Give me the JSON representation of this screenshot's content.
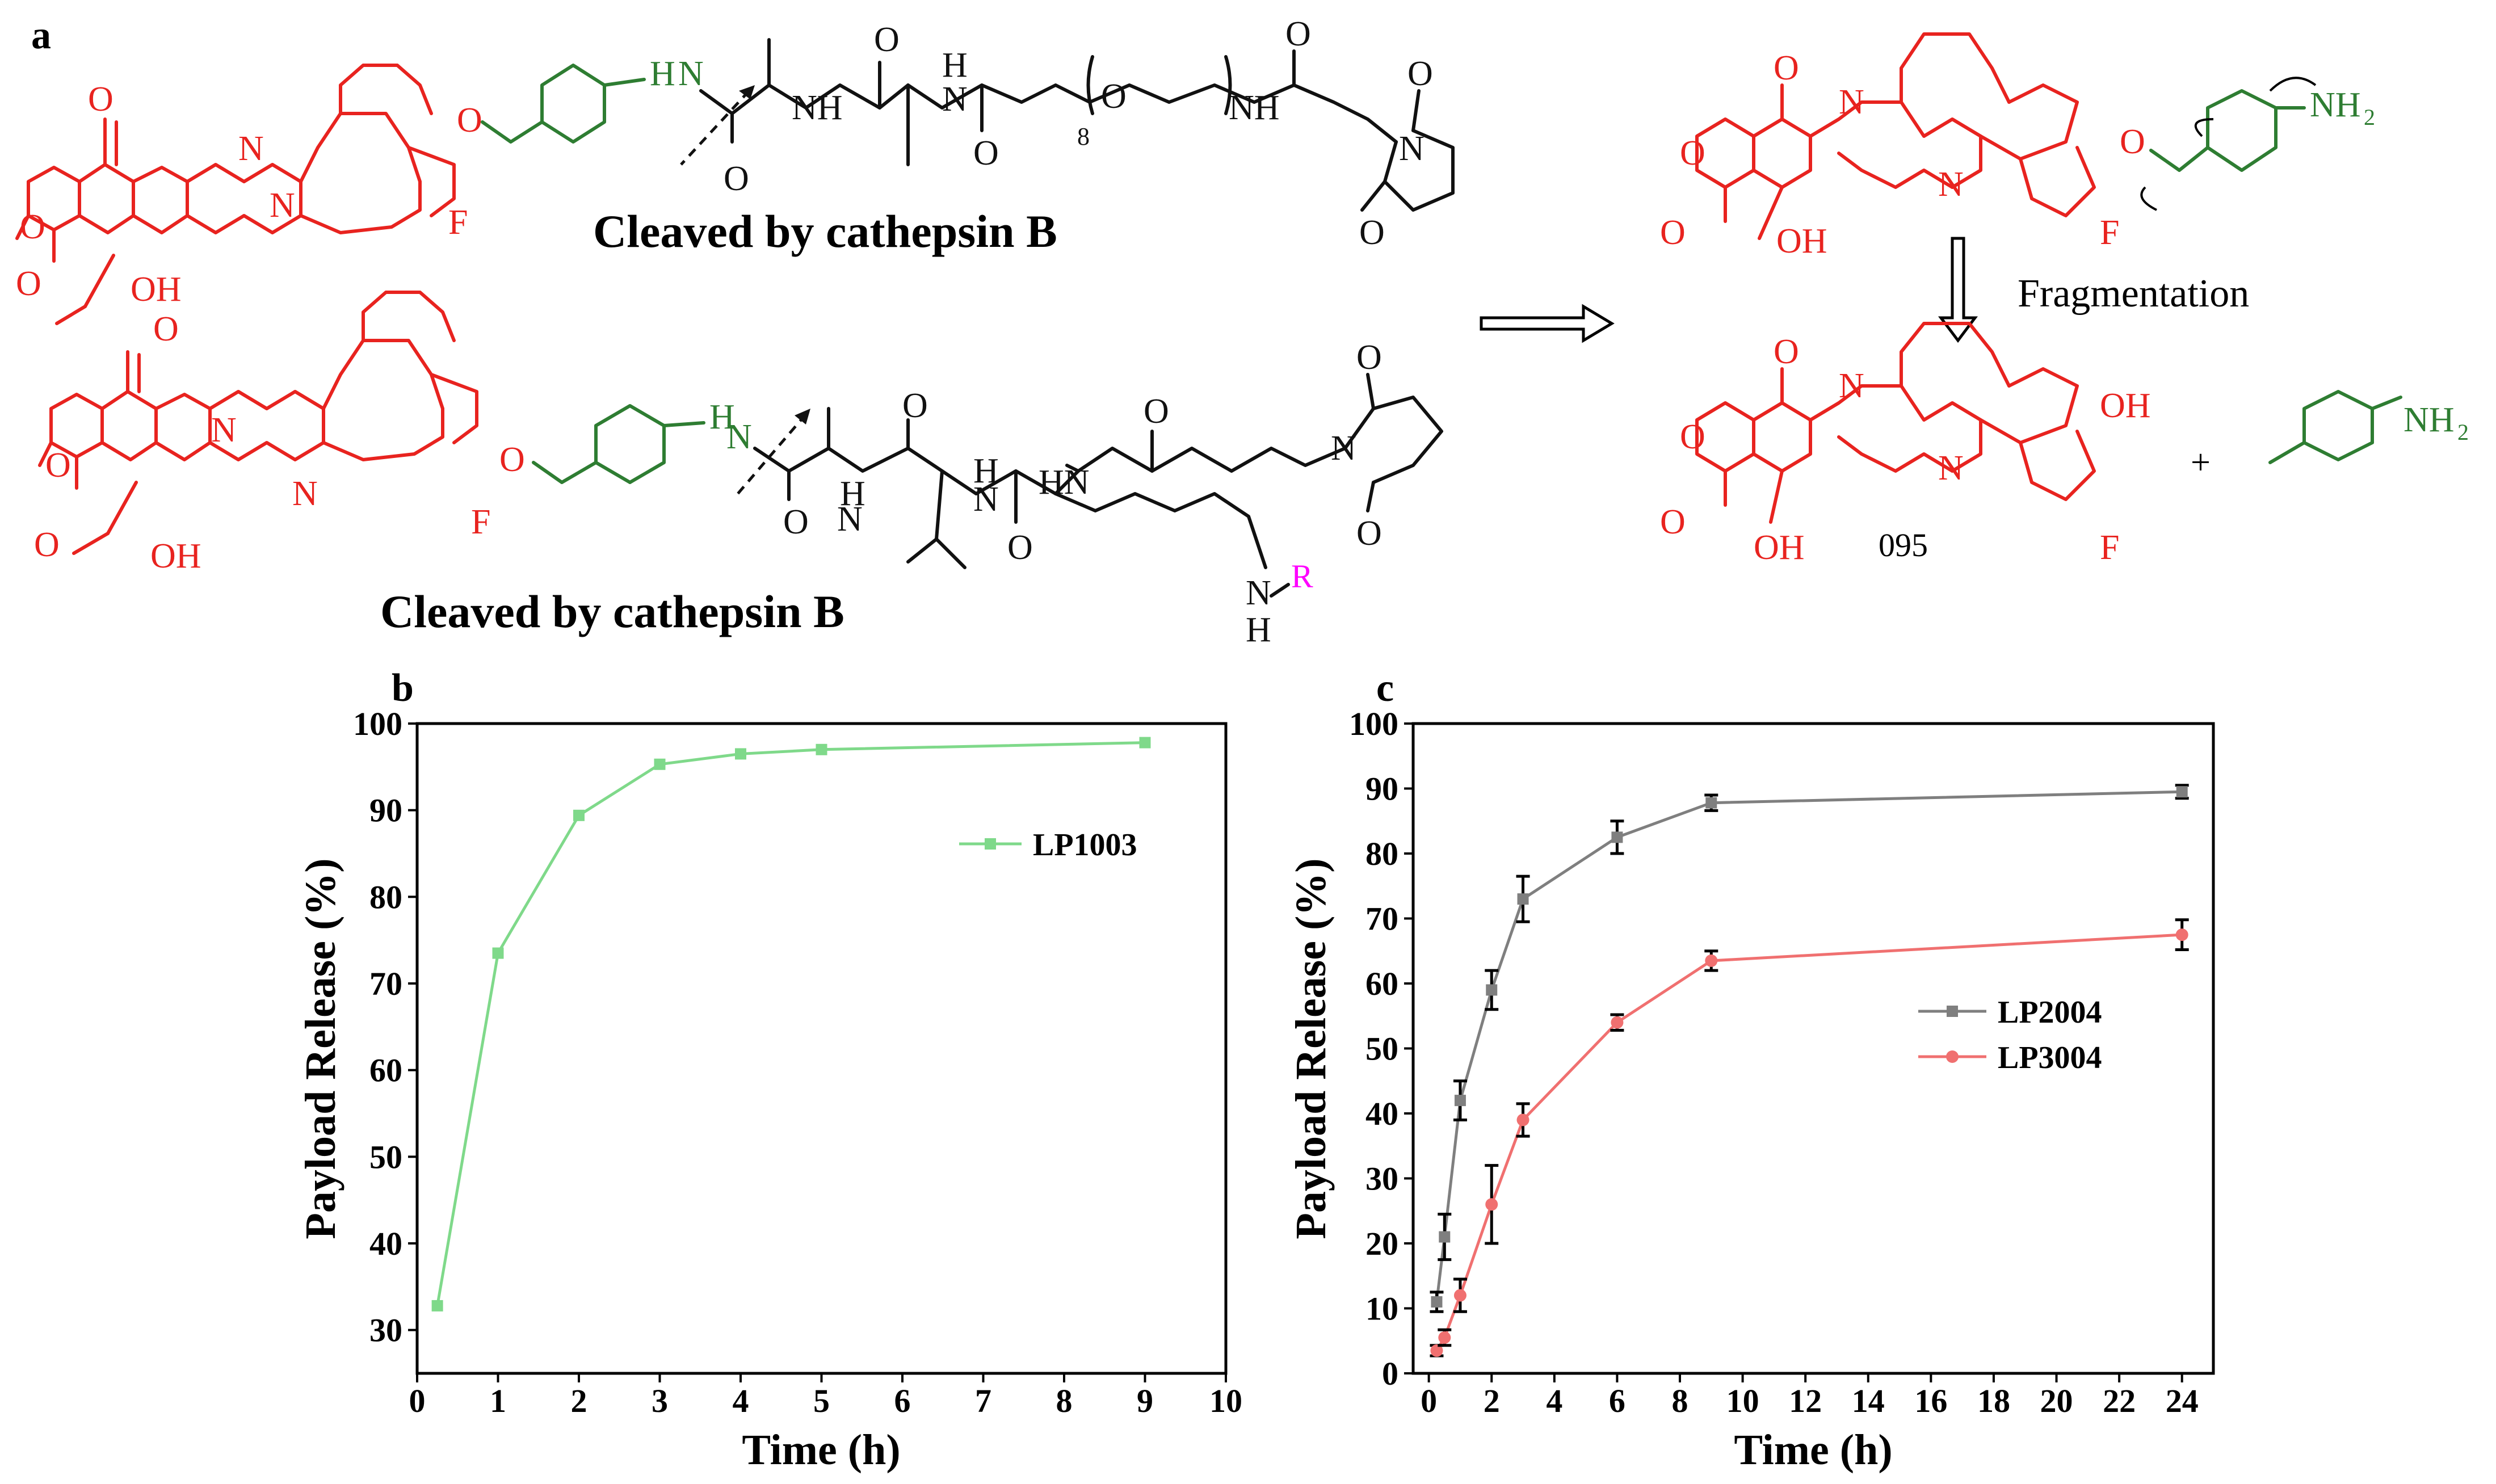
{
  "panel_labels": {
    "a": "a",
    "b": "b",
    "c": "c"
  },
  "scheme": {
    "cleave_caption_top": "Cleaved by cathepsin B",
    "cleave_caption_bottom": "Cleaved by cathepsin B",
    "fragmentation": "Fragmentation",
    "compound_label": "095",
    "plus": "+",
    "peg_repeat": "8",
    "atoms": {
      "O": "O",
      "N": "N",
      "F": "F",
      "OH": "OH",
      "NH": "NH",
      "H": "H",
      "HN": "HN",
      "NH2": "NH",
      "sub2": "2",
      "R": "R"
    },
    "colors": {
      "payload": "#e8231f",
      "linker": "#2e7d32",
      "peptide": "#111111",
      "substituent": "#ff00ff"
    }
  },
  "chart_data": [
    {
      "type": "line",
      "panel": "b",
      "xlabel": "Time (h)",
      "ylabel": "Payload Release (%)",
      "xlim": [
        0,
        10
      ],
      "ylim": [
        25,
        100
      ],
      "xticks": [
        0,
        1,
        2,
        3,
        4,
        5,
        6,
        7,
        8,
        9,
        10
      ],
      "yticks": [
        30,
        40,
        50,
        60,
        70,
        80,
        90,
        100
      ],
      "legend_position": "right",
      "series": [
        {
          "name": "LP1003",
          "color": "#7fd98a",
          "marker": "square",
          "x": [
            0.25,
            1,
            2,
            3,
            4,
            5,
            9
          ],
          "y": [
            32.8,
            73.5,
            89.4,
            95.3,
            96.5,
            97.0,
            97.8
          ]
        }
      ]
    },
    {
      "type": "line",
      "panel": "c",
      "xlabel": "Time (h)",
      "ylabel": "Payload Release (%)",
      "xlim": [
        -0.5,
        25
      ],
      "ylim": [
        0,
        100
      ],
      "xticks": [
        0,
        2,
        4,
        6,
        8,
        10,
        12,
        14,
        16,
        18,
        20,
        22,
        24
      ],
      "yticks": [
        0,
        10,
        20,
        30,
        40,
        50,
        60,
        70,
        80,
        90,
        100
      ],
      "legend_position": "right",
      "series": [
        {
          "name": "LP2004",
          "color": "#7f7f7f",
          "marker": "square",
          "x": [
            0.25,
            0.5,
            1,
            2,
            3,
            6,
            9,
            24
          ],
          "y": [
            11,
            21,
            42,
            59,
            73,
            82.5,
            87.8,
            89.5
          ],
          "err": [
            1.5,
            3.5,
            3,
            3,
            3.5,
            2.5,
            1.2,
            1
          ]
        },
        {
          "name": "LP3004",
          "color": "#f07070",
          "marker": "circle",
          "x": [
            0.25,
            0.5,
            1,
            2,
            3,
            6,
            9,
            24
          ],
          "y": [
            3.5,
            5.5,
            12,
            26,
            39,
            54,
            63.5,
            67.5
          ],
          "err": [
            0.8,
            1.2,
            2.5,
            6,
            2.5,
            1.2,
            1.5,
            2.3
          ]
        }
      ]
    }
  ]
}
